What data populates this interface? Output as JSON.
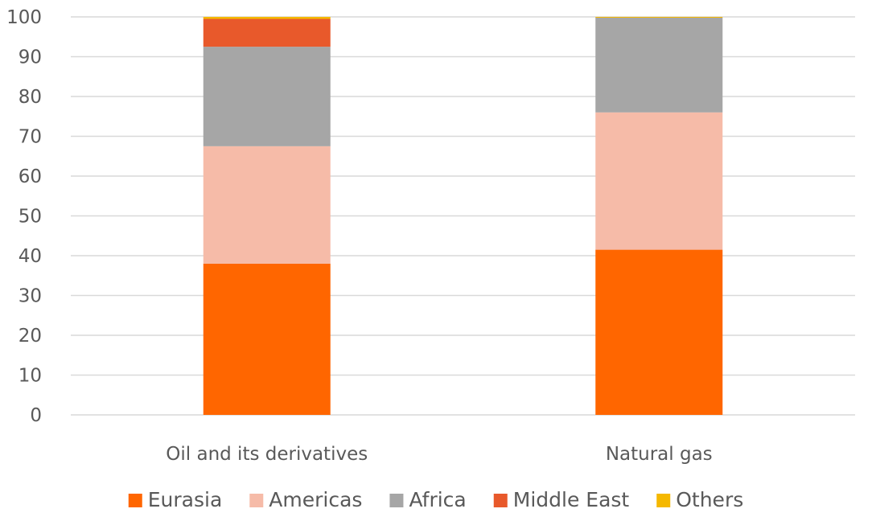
{
  "chart_data": {
    "type": "bar",
    "stacked": true,
    "categories": [
      "Oil and its derivatives",
      "Natural gas"
    ],
    "series": [
      {
        "name": "Eurasia",
        "color": "#ff6600",
        "values": [
          38,
          41.5
        ]
      },
      {
        "name": "Americas",
        "color": "#f6bba8",
        "values": [
          29.5,
          34.5
        ]
      },
      {
        "name": "Africa",
        "color": "#a6a6a6",
        "values": [
          25,
          23.8
        ]
      },
      {
        "name": "Middle East",
        "color": "#e8592b",
        "values": [
          7,
          0
        ]
      },
      {
        "name": "Others",
        "color": "#f5b800",
        "values": [
          0.5,
          0.2
        ]
      }
    ],
    "y_ticks": [
      "0",
      "10",
      "20",
      "30",
      "40",
      "50",
      "60",
      "70",
      "80",
      "90",
      "100"
    ],
    "ylim": [
      0,
      100
    ],
    "grid": true,
    "legend_position": "bottom"
  }
}
